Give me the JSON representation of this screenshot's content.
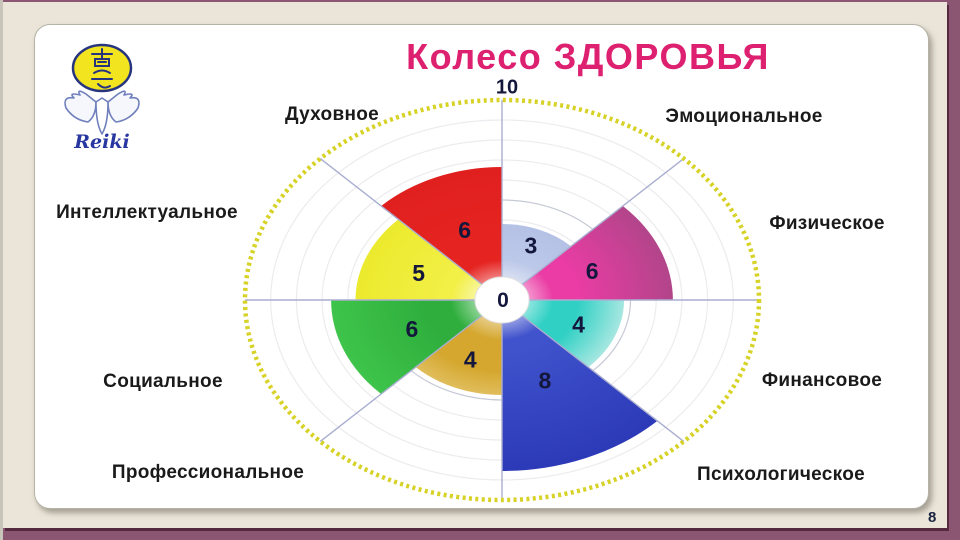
{
  "slide": {
    "title": "Колесо ЗДОРОВЬЯ",
    "page_number": "8",
    "logo": {
      "text": "Reiki"
    },
    "colors": {
      "title": "#dd206f",
      "outer_background": "#8b5671",
      "panel_background": "#eae5d8",
      "card_background": "#ffffff",
      "wheel_outline": "#d6d226",
      "grid_line": "#ececf0",
      "radial_line": "#a9aed0",
      "value_text": "#14173c"
    }
  },
  "chart_data": {
    "type": "pie",
    "subtype": "wheel-of-life-sector-chart",
    "title": "Колесо ЗДОРОВЬЯ",
    "scale": {
      "min": 0,
      "max": 10,
      "center_label": "0",
      "top_label": "10"
    },
    "start_angle_deg": 0,
    "direction": "clockwise",
    "grid": true,
    "legend_position": "around",
    "sectors": [
      {
        "label": "Эмоциональное",
        "value": 3,
        "color": "#bdc9e9",
        "color_outer": "#b4c1e6",
        "stop": 0.5
      },
      {
        "label": "Физическое",
        "value": 6,
        "color": "#ea3ca4",
        "color_outer": "#b2458a",
        "stop": 0.45
      },
      {
        "label": "Финансовое",
        "value": 4,
        "color": "#30d0c4",
        "color_outer": "#a6e7e1",
        "stop": 0.62
      },
      {
        "label": "Психологическое",
        "value": 8,
        "color": "#4052cc",
        "color_outer": "#2c3ab8",
        "stop": 0.3
      },
      {
        "label": "Профессиональное",
        "value": 4,
        "color": "#d5a72f",
        "color_outer": "#e0bd5c",
        "stop": 0.75
      },
      {
        "label": "Социальное",
        "value": 6,
        "color": "#2fae3d",
        "color_outer": "#3ec44a",
        "stop": 0.45
      },
      {
        "label": "Интеллектуальное",
        "value": 5,
        "color": "#f2ef46",
        "color_outer": "#ecea2d",
        "stop": 0.4
      },
      {
        "label": "Духовное",
        "value": 6,
        "color": "#e52421",
        "color_outer": "#e0201f",
        "stop": 0.5
      }
    ]
  }
}
